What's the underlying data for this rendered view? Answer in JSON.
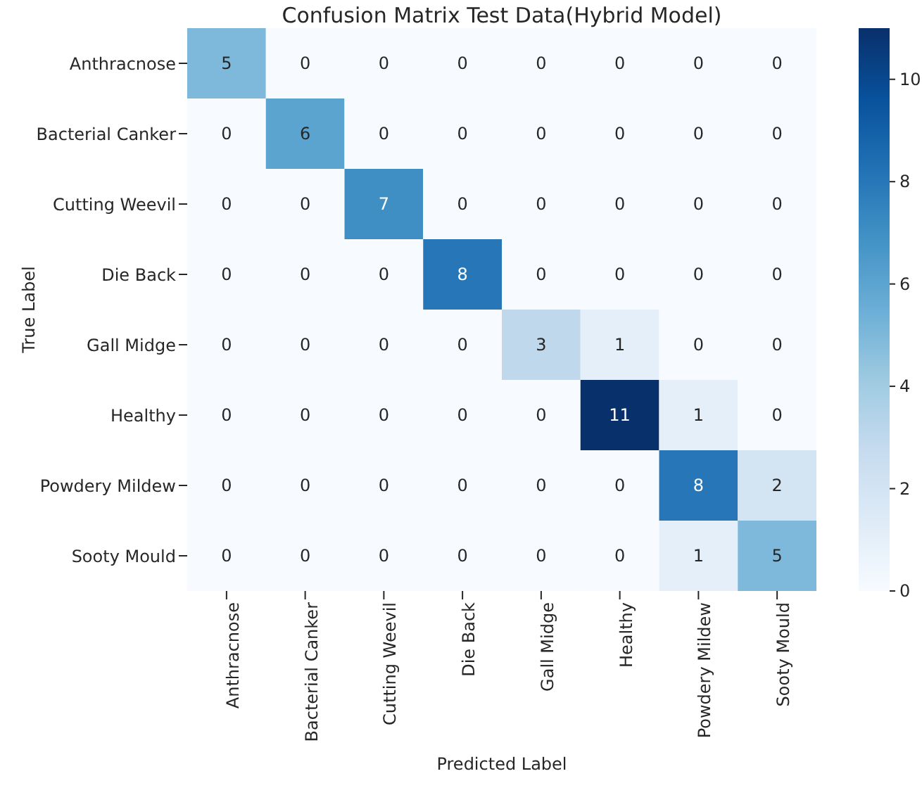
{
  "chart_data": {
    "type": "heatmap",
    "title": "Confusion Matrix Test Data(Hybrid Model)",
    "xlabel": "Predicted Label",
    "ylabel": "True Label",
    "categories": [
      "Anthracnose",
      "Bacterial Canker",
      "Cutting Weevil",
      "Die Back",
      "Gall Midge",
      "Healthy",
      "Powdery Mildew",
      "Sooty Mould"
    ],
    "y_categories": [
      "Anthracnose",
      "Bacterial Canker",
      "Cutting Weevil",
      "Die Back",
      "Gall Midge",
      "Healthy",
      "Powdery Mildew",
      "Sooty Mould"
    ],
    "cells": [
      [
        5,
        0,
        0,
        0,
        0,
        0,
        0,
        0
      ],
      [
        0,
        6,
        0,
        0,
        0,
        0,
        0,
        0
      ],
      [
        0,
        0,
        7,
        0,
        0,
        0,
        0,
        0
      ],
      [
        0,
        0,
        0,
        8,
        0,
        0,
        0,
        0
      ],
      [
        0,
        0,
        0,
        0,
        3,
        1,
        0,
        0
      ],
      [
        0,
        0,
        0,
        0,
        0,
        11,
        1,
        0
      ],
      [
        0,
        0,
        0,
        0,
        0,
        0,
        8,
        2
      ],
      [
        0,
        0,
        0,
        0,
        0,
        0,
        1,
        5
      ]
    ],
    "data_labels": true,
    "clim": [
      0,
      11
    ],
    "cticks": [
      0,
      2,
      4,
      6,
      8,
      10
    ]
  }
}
